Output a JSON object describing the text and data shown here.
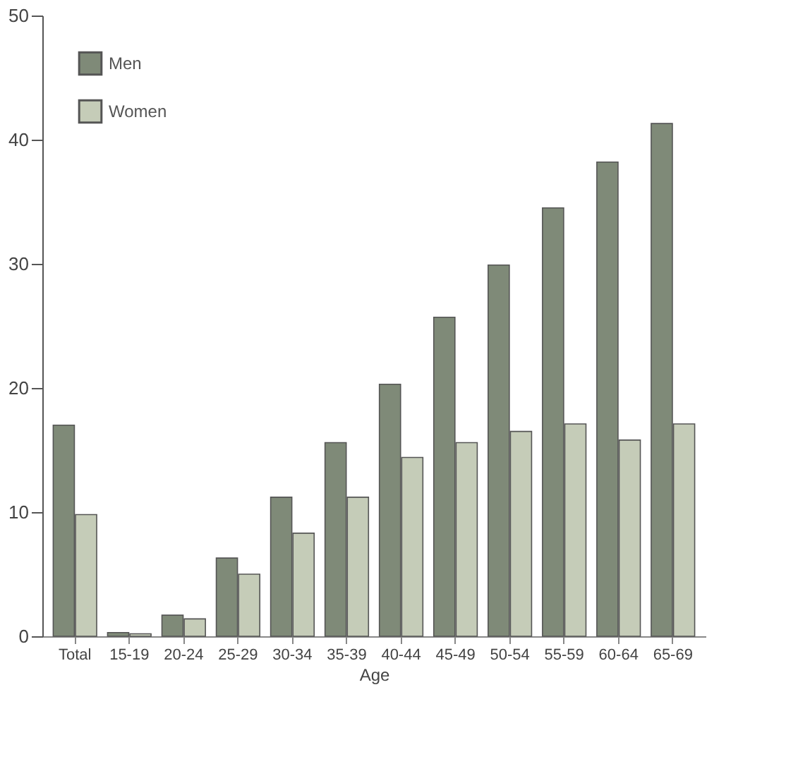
{
  "chart_data": {
    "type": "bar",
    "xlabel": "Age",
    "categories": [
      "Total",
      "15-19",
      "20-24",
      "25-29",
      "30-34",
      "35-39",
      "40-44",
      "45-49",
      "50-54",
      "55-59",
      "60-64",
      "65-69"
    ],
    "series": [
      {
        "name": "Men",
        "color": "#7f8a78",
        "values": [
          17.0,
          0.3,
          1.7,
          6.3,
          11.2,
          15.6,
          20.3,
          25.7,
          29.9,
          34.5,
          38.2,
          41.3
        ]
      },
      {
        "name": "Women",
        "color": "#c5ccb8",
        "values": [
          9.8,
          0.2,
          1.4,
          5.0,
          8.3,
          11.2,
          14.4,
          15.6,
          16.5,
          17.1,
          15.8,
          17.1
        ]
      }
    ],
    "ylim": [
      0,
      50
    ],
    "yticks": [
      0,
      10,
      20,
      30,
      40,
      50
    ],
    "grid": false,
    "legend": "top left"
  }
}
